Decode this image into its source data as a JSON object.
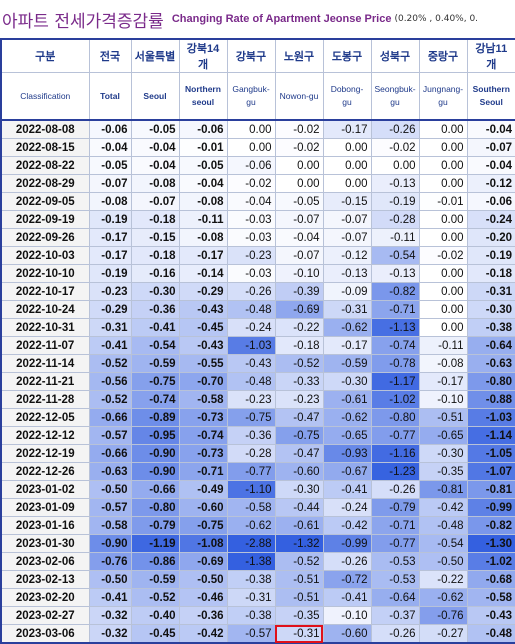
{
  "header": {
    "title_kr": "아파트 전세가격증감률",
    "title_en": "Changing Rate of Apartment Jeonse Price",
    "note": "(0.20% , 0.40%, 0."
  },
  "table": {
    "columns": [
      {
        "kr": "구분",
        "en": "Classification"
      },
      {
        "kr": "전국",
        "en": "Total"
      },
      {
        "kr": "서울특별",
        "en": "Seoul"
      },
      {
        "kr": "강북14개",
        "en": "Northern seoul"
      },
      {
        "kr": "강북구",
        "en": "Gangbuk-gu"
      },
      {
        "kr": "노원구",
        "en": "Nowon-gu"
      },
      {
        "kr": "도봉구",
        "en": "Dobong-gu"
      },
      {
        "kr": "성북구",
        "en": "Seongbuk-gu"
      },
      {
        "kr": "중랑구",
        "en": "Jungnang-gu"
      },
      {
        "kr": "강남11개",
        "en": "Southern Seoul"
      }
    ],
    "rows": [
      [
        "2022-08-08",
        "-0.06",
        "-0.05",
        "-0.06",
        "0.00",
        "-0.02",
        "-0.17",
        "-0.26",
        "0.00",
        "-0.04"
      ],
      [
        "2022-08-15",
        "-0.04",
        "-0.04",
        "-0.01",
        "0.00",
        "-0.02",
        "0.00",
        "-0.02",
        "0.00",
        "-0.07"
      ],
      [
        "2022-08-22",
        "-0.05",
        "-0.04",
        "-0.05",
        "-0.06",
        "0.00",
        "0.00",
        "0.00",
        "0.00",
        "-0.04"
      ],
      [
        "2022-08-29",
        "-0.07",
        "-0.08",
        "-0.04",
        "-0.02",
        "0.00",
        "0.00",
        "-0.13",
        "0.00",
        "-0.12"
      ],
      [
        "2022-09-05",
        "-0.08",
        "-0.07",
        "-0.08",
        "-0.04",
        "-0.05",
        "-0.15",
        "-0.19",
        "-0.01",
        "-0.06"
      ],
      [
        "2022-09-19",
        "-0.19",
        "-0.18",
        "-0.11",
        "-0.03",
        "-0.07",
        "-0.07",
        "-0.28",
        "0.00",
        "-0.24"
      ],
      [
        "2022-09-26",
        "-0.17",
        "-0.15",
        "-0.08",
        "-0.03",
        "-0.04",
        "-0.07",
        "-0.11",
        "0.00",
        "-0.20"
      ],
      [
        "2022-10-03",
        "-0.17",
        "-0.18",
        "-0.17",
        "-0.23",
        "-0.07",
        "-0.12",
        "-0.54",
        "-0.02",
        "-0.19"
      ],
      [
        "2022-10-10",
        "-0.19",
        "-0.16",
        "-0.14",
        "-0.03",
        "-0.10",
        "-0.13",
        "-0.13",
        "0.00",
        "-0.18"
      ],
      [
        "2022-10-17",
        "-0.23",
        "-0.30",
        "-0.29",
        "-0.26",
        "-0.39",
        "-0.09",
        "-0.82",
        "0.00",
        "-0.31"
      ],
      [
        "2022-10-24",
        "-0.29",
        "-0.36",
        "-0.43",
        "-0.48",
        "-0.69",
        "-0.31",
        "-0.71",
        "0.00",
        "-0.30"
      ],
      [
        "2022-10-31",
        "-0.31",
        "-0.41",
        "-0.45",
        "-0.24",
        "-0.22",
        "-0.62",
        "-1.13",
        "0.00",
        "-0.38"
      ],
      [
        "2022-11-07",
        "-0.41",
        "-0.54",
        "-0.43",
        "-1.03",
        "-0.18",
        "-0.17",
        "-0.74",
        "-0.11",
        "-0.64"
      ],
      [
        "2022-11-14",
        "-0.52",
        "-0.59",
        "-0.55",
        "-0.43",
        "-0.52",
        "-0.59",
        "-0.78",
        "-0.08",
        "-0.63"
      ],
      [
        "2022-11-21",
        "-0.56",
        "-0.75",
        "-0.70",
        "-0.48",
        "-0.33",
        "-0.30",
        "-1.17",
        "-0.17",
        "-0.80"
      ],
      [
        "2022-11-28",
        "-0.52",
        "-0.74",
        "-0.58",
        "-0.23",
        "-0.23",
        "-0.61",
        "-1.02",
        "-0.10",
        "-0.88"
      ],
      [
        "2022-12-05",
        "-0.66",
        "-0.89",
        "-0.73",
        "-0.75",
        "-0.47",
        "-0.62",
        "-0.80",
        "-0.51",
        "-1.03"
      ],
      [
        "2022-12-12",
        "-0.57",
        "-0.95",
        "-0.74",
        "-0.36",
        "-0.75",
        "-0.65",
        "-0.77",
        "-0.65",
        "-1.14"
      ],
      [
        "2022-12-19",
        "-0.66",
        "-0.90",
        "-0.73",
        "-0.28",
        "-0.47",
        "-0.93",
        "-1.16",
        "-0.30",
        "-1.05"
      ],
      [
        "2022-12-26",
        "-0.63",
        "-0.90",
        "-0.71",
        "-0.77",
        "-0.60",
        "-0.67",
        "-1.23",
        "-0.35",
        "-1.07"
      ],
      [
        "2023-01-02",
        "-0.50",
        "-0.66",
        "-0.49",
        "-1.10",
        "-0.30",
        "-0.41",
        "-0.26",
        "-0.81",
        "-0.81"
      ],
      [
        "2023-01-09",
        "-0.57",
        "-0.80",
        "-0.60",
        "-0.58",
        "-0.44",
        "-0.24",
        "-0.79",
        "-0.42",
        "-0.99"
      ],
      [
        "2023-01-16",
        "-0.58",
        "-0.79",
        "-0.75",
        "-0.62",
        "-0.61",
        "-0.42",
        "-0.71",
        "-0.48",
        "-0.82"
      ],
      [
        "2023-01-30",
        "-0.90",
        "-1.19",
        "-1.08",
        "-2.88",
        "-1.32",
        "-0.99",
        "-0.77",
        "-0.54",
        "-1.30"
      ],
      [
        "2023-02-06",
        "-0.76",
        "-0.86",
        "-0.69",
        "-1.38",
        "-0.52",
        "-0.26",
        "-0.53",
        "-0.50",
        "-1.02"
      ],
      [
        "2023-02-13",
        "-0.50",
        "-0.59",
        "-0.50",
        "-0.38",
        "-0.51",
        "-0.72",
        "-0.53",
        "-0.22",
        "-0.68"
      ],
      [
        "2023-02-20",
        "-0.41",
        "-0.52",
        "-0.46",
        "-0.31",
        "-0.51",
        "-0.41",
        "-0.64",
        "-0.62",
        "-0.58"
      ],
      [
        "2023-02-27",
        "-0.32",
        "-0.40",
        "-0.36",
        "-0.38",
        "-0.35",
        "-0.10",
        "-0.37",
        "-0.76",
        "-0.43"
      ],
      [
        "2023-03-06",
        "-0.32",
        "-0.45",
        "-0.42",
        "-0.57",
        "-0.31",
        "-0.60",
        "-0.26",
        "-0.27",
        "-0.48"
      ]
    ]
  }
}
